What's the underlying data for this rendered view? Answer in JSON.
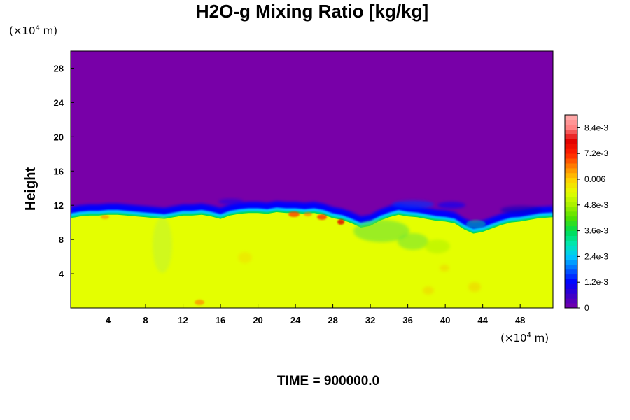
{
  "chart_data": {
    "type": "heatmap",
    "title": "H2O-g Mixing Ratio [kg/kg]",
    "ylabel": "Height",
    "x_unit": "(×10",
    "x_unit_exp": "4",
    "x_unit_tail": " m)",
    "y_unit": "(×10",
    "y_unit_exp": "4",
    "y_unit_tail": " m)",
    "time_label": "TIME = 900000.0",
    "xlim": [
      0,
      51.5
    ],
    "ylim": [
      0,
      30
    ],
    "x_ticks": [
      "4",
      "8",
      "12",
      "16",
      "20",
      "24",
      "28",
      "32",
      "36",
      "40",
      "44",
      "48"
    ],
    "y_ticks": [
      "4",
      "8",
      "12",
      "16",
      "20",
      "24",
      "28"
    ],
    "x_tick_values": [
      4,
      8,
      12,
      16,
      20,
      24,
      28,
      32,
      36,
      40,
      44,
      48
    ],
    "y_tick_values": [
      4,
      8,
      12,
      16,
      20,
      24,
      28
    ],
    "colorbar": {
      "min": 0,
      "max": 0.009,
      "labels": [
        "8.4e-3",
        "7.2e-3",
        "0.006",
        "4.8e-3",
        "3.6e-3",
        "2.4e-3",
        "1.2e-3",
        "0"
      ],
      "label_values": [
        0.0084,
        0.0072,
        0.006,
        0.0048,
        0.0036,
        0.0024,
        0.0012,
        0
      ],
      "colors": [
        "#7800a8",
        "#3c00c8",
        "#0000ff",
        "#0064ff",
        "#00c8ff",
        "#00e8b0",
        "#00dc50",
        "#50e000",
        "#a8f000",
        "#e4ff00",
        "#ffd000",
        "#ff8000",
        "#ff2000",
        "#e00000",
        "#ff8080",
        "#ffb0b0"
      ]
    },
    "fill_colors": {
      "upper_dry": "#7800a8",
      "lower_moist": "#e4ff00"
    },
    "boundary": {
      "x": [
        0,
        1,
        2,
        3,
        4,
        5,
        6,
        7,
        8,
        9,
        10,
        11,
        12,
        13,
        14,
        15,
        16,
        17,
        18,
        19,
        20,
        21,
        22,
        23,
        24,
        25,
        26,
        27,
        28,
        29,
        30,
        31,
        32,
        33,
        34,
        35,
        36,
        37,
        38,
        39,
        40,
        41,
        42,
        43,
        44,
        45,
        46,
        47,
        48,
        49,
        50,
        51.5
      ],
      "y": [
        10.5,
        10.7,
        10.8,
        10.8,
        10.9,
        10.9,
        10.8,
        10.7,
        10.6,
        10.5,
        10.4,
        10.6,
        10.8,
        10.8,
        10.9,
        10.7,
        10.4,
        10.8,
        11.0,
        11.1,
        11.1,
        11.0,
        11.2,
        11.1,
        11.1,
        11.0,
        11.1,
        10.9,
        10.5,
        10.3,
        9.9,
        9.4,
        9.6,
        10.2,
        10.6,
        10.9,
        10.7,
        10.6,
        10.4,
        10.2,
        10.1,
        9.9,
        9.2,
        8.7,
        8.9,
        9.3,
        9.7,
        10.0,
        10.1,
        10.3,
        10.5,
        10.6
      ]
    }
  }
}
